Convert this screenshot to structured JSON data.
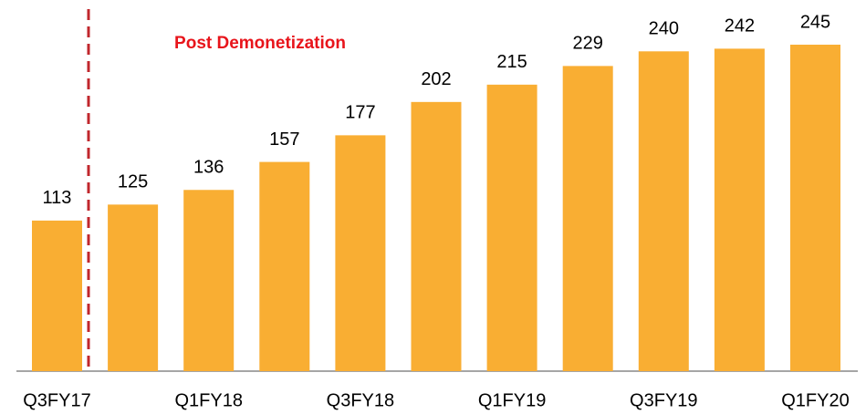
{
  "chart_data": {
    "type": "bar",
    "annotation": "Post Demonetization",
    "categories": [
      "Q3FY17",
      null,
      "Q1FY18",
      null,
      "Q3FY18",
      null,
      "Q1FY19",
      null,
      "Q3FY19",
      null,
      "Q1FY20"
    ],
    "values": [
      113,
      125,
      136,
      157,
      177,
      202,
      215,
      229,
      240,
      242,
      245
    ],
    "color": "#f9ae33"
  }
}
